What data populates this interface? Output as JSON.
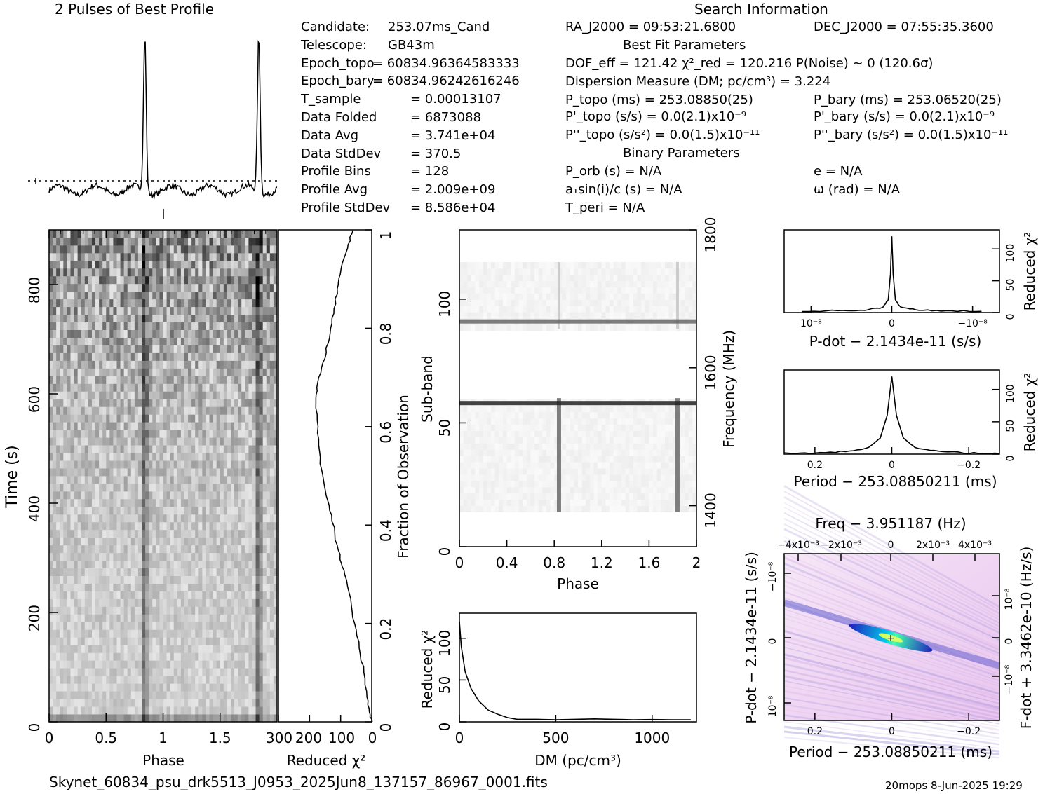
{
  "header": {
    "profile_title": "2 Pulses of Best Profile",
    "search_title": "Search Information"
  },
  "info_left": [
    {
      "label": "Candidate:",
      "value": "253.07ms_Cand"
    },
    {
      "label": "Telescope:",
      "value": "GB43m"
    },
    {
      "label": "Epoch_topo",
      "value": "= 60834.96364583333"
    },
    {
      "label": "Epoch_bary",
      "value": "= 60834.96242616246"
    },
    {
      "label": "T_sample",
      "value": "=  0.00013107"
    },
    {
      "label": "Data Folded",
      "value": "=  6873088"
    },
    {
      "label": "Data Avg",
      "value": "=  3.741e+04"
    },
    {
      "label": "Data StdDev",
      "value": "=  370.5"
    },
    {
      "label": "Profile Bins",
      "value": "=  128"
    },
    {
      "label": "Profile Avg",
      "value": "=  2.009e+09"
    },
    {
      "label": "Profile StdDev",
      "value": "=  8.586e+04"
    }
  ],
  "info_mid": {
    "ra": "RA_J2000 = 09:53:21.6800",
    "dec": "DEC_J2000 = 07:55:35.3600",
    "best_fit_header": "Best Fit Parameters",
    "dof": "DOF_eff = 121.42   χ²_red = 120.216   P(Noise) ~ 0    (120.6σ)",
    "dm": "Dispersion Measure (DM; pc/cm³) = 3.224",
    "p_topo": "P_topo (ms) =  253.08850(25)",
    "p_bary": "P_bary (ms) =  253.06520(25)",
    "pd_topo": "P'_topo (s/s) = 0.0(2.1)x10⁻⁹",
    "pd_bary": "P'_bary (s/s) = 0.0(2.1)x10⁻⁹",
    "pdd_topo": "P''_topo (s/s²) = 0.0(1.5)x10⁻¹¹",
    "pdd_bary": "P''_bary (s/s²) = 0.0(1.5)x10⁻¹¹",
    "binary_header": "Binary Parameters",
    "porb": "P_orb (s) = N/A",
    "e": "e = N/A",
    "a1": "a₁sin(i)/c (s) = N/A",
    "omega": "ω (rad) = N/A",
    "tperi": "T_peri = N/A"
  },
  "footer": {
    "filename": "Skynet_60834_psu_drk5513_J0953_2025Jun8_137157_86967_0001.fits",
    "stamp": "20mops   8-Jun-2025 19:29"
  },
  "chart_data": [
    {
      "type": "line",
      "title": "2 Pulses of Best Profile",
      "x": [
        0,
        0.1,
        0.2,
        0.3,
        0.4,
        0.5,
        0.6,
        0.7,
        0.78,
        0.82,
        0.84,
        0.86,
        0.9,
        1.0,
        1.1,
        1.2,
        1.3,
        1.4,
        1.5,
        1.6,
        1.7,
        1.78,
        1.82,
        1.84,
        1.86,
        1.9,
        2.0
      ],
      "values": [
        0.02,
        -0.05,
        -0.03,
        -0.06,
        -0.02,
        -0.05,
        -0.04,
        -0.02,
        0.0,
        0.6,
        1.0,
        0.6,
        0.0,
        -0.05,
        -0.03,
        -0.06,
        -0.02,
        -0.05,
        -0.04,
        -0.02,
        -0.03,
        0.0,
        0.6,
        1.0,
        0.6,
        0.0,
        -0.05
      ]
    },
    {
      "type": "heatmap",
      "xlabel": "Phase",
      "ylabel": "Time (s)",
      "xlim": [
        0,
        2
      ],
      "ylim": [
        0,
        900
      ],
      "xticks": [
        "0",
        "0.5",
        "1",
        "1.5"
      ],
      "yticks": [
        "0",
        "200",
        "400",
        "600",
        "800"
      ],
      "pulse_phases": [
        0.84,
        1.84
      ]
    },
    {
      "type": "line",
      "xlabel": "Reduced χ²",
      "ylabel": "Fraction of Observation",
      "xlim": [
        300,
        0
      ],
      "ylim": [
        0,
        1
      ],
      "xticks": [
        "300",
        "200",
        "100",
        "0"
      ],
      "yticks": [
        "0",
        "0.2",
        "0.4",
        "0.6",
        "0.8",
        "1"
      ],
      "x": [
        0,
        8,
        15,
        25,
        40,
        55,
        70,
        85,
        100,
        115,
        130,
        145,
        160,
        170,
        175,
        180,
        175,
        160,
        145,
        130,
        120,
        110,
        100,
        90,
        75,
        60
      ],
      "y": [
        0,
        0.02,
        0.05,
        0.1,
        0.15,
        0.2,
        0.25,
        0.3,
        0.33,
        0.37,
        0.42,
        0.46,
        0.5,
        0.55,
        0.6,
        0.65,
        0.68,
        0.72,
        0.76,
        0.8,
        0.84,
        0.88,
        0.91,
        0.94,
        0.97,
        1.0
      ]
    },
    {
      "type": "heatmap",
      "xlabel": "Phase",
      "ylabel": "Sub-band",
      "y2label": "Frequency (MHz)",
      "xlim": [
        0,
        2
      ],
      "ylim": [
        0,
        128
      ],
      "xticks": [
        "0",
        "0.4",
        "0.8",
        "1.2",
        "1.6",
        "2"
      ],
      "yticks": [
        "0",
        "50",
        "100"
      ],
      "y2ticks": [
        "1400",
        "1600",
        "1800"
      ],
      "bright_subbands": [
        58,
        91
      ],
      "pulse_phases": [
        0.84,
        1.84
      ]
    },
    {
      "type": "line",
      "xlabel": "DM (pc/cm³)",
      "ylabel": "Reduced χ²",
      "xlim": [
        0,
        1230
      ],
      "ylim": [
        0,
        130
      ],
      "xticks": [
        "0",
        "500",
        "1000"
      ],
      "yticks": [
        "0",
        "50",
        "100"
      ],
      "x": [
        0,
        10,
        30,
        60,
        100,
        150,
        200,
        250,
        300,
        400,
        500,
        600,
        700,
        800,
        900,
        1000,
        1100,
        1200
      ],
      "values": [
        120,
        90,
        60,
        40,
        25,
        14,
        9,
        5,
        3,
        3,
        2.5,
        3,
        3.5,
        3,
        2.5,
        2.8,
        2.5,
        2.5
      ]
    },
    {
      "type": "line",
      "xlabel": "P-dot − 2.1434e-11 (s/s)",
      "ylabel": "Reduced χ²",
      "xticks": [
        "10⁻⁸",
        "0",
        "−10⁻⁸"
      ],
      "yticks": [
        "0",
        "50",
        "100"
      ],
      "x": [
        -1,
        -0.6,
        -0.3,
        -0.1,
        -0.04,
        -0.015,
        0,
        0.015,
        0.04,
        0.1,
        0.3,
        0.6,
        1
      ],
      "values": [
        2,
        3,
        4,
        8,
        20,
        60,
        120,
        60,
        20,
        8,
        4,
        3,
        2
      ]
    },
    {
      "type": "line",
      "xlabel": "Period − 253.08850211 (ms)",
      "ylabel": "Reduced χ²",
      "xticks": [
        "0.2",
        "0",
        "−0.2"
      ],
      "yticks": [
        "0",
        "50",
        "100"
      ],
      "x": [
        0.28,
        0.2,
        0.12,
        0.06,
        0.03,
        0.012,
        0,
        -0.012,
        -0.03,
        -0.06,
        -0.12,
        -0.2,
        -0.28
      ],
      "values": [
        1,
        2,
        4,
        10,
        25,
        60,
        120,
        60,
        25,
        10,
        4,
        2,
        1
      ]
    },
    {
      "type": "heatmap",
      "title": "Freq − 3.951187 (Hz)",
      "xlabel": "Period − 253.08850211 (ms)",
      "ylabel": "P-dot − 2.1434e-11 (s/s)",
      "y2label": "F-dot + 3.3462e-10 (Hz/s)",
      "xticks": [
        "0.2",
        "0",
        "−0.2"
      ],
      "x2ticks": [
        "−4x10⁻³",
        "−2x10⁻³",
        "0",
        "2x10⁻³",
        "4x10⁻³"
      ],
      "yticks": [
        "−10⁻⁸",
        "0",
        "10⁻⁸"
      ],
      "y2ticks": [
        "10⁻⁸",
        "0",
        "−10⁻⁸"
      ]
    }
  ]
}
